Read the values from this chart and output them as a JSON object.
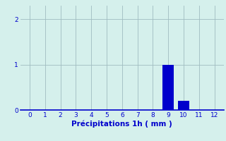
{
  "categories": [
    0,
    1,
    2,
    3,
    4,
    5,
    6,
    7,
    8,
    9,
    10,
    11,
    12
  ],
  "values": [
    0,
    0,
    0,
    0,
    0,
    0,
    0,
    0,
    0,
    1.0,
    0.2,
    0,
    0
  ],
  "bar_color": "#0000cc",
  "background_color": "#d5f0ec",
  "xlabel": "Précipitations 1h ( mm )",
  "ylim_max": 2.3,
  "yticks": [
    0,
    1,
    2
  ],
  "xlim": [
    -0.6,
    12.6
  ],
  "xticks": [
    0,
    1,
    2,
    3,
    4,
    5,
    6,
    7,
    8,
    9,
    10,
    11,
    12
  ],
  "tick_color": "#0000cc",
  "grid_color": "#a0bcc0",
  "xlabel_fontsize": 7.5,
  "tick_fontsize": 6.5,
  "bar_width": 0.75
}
